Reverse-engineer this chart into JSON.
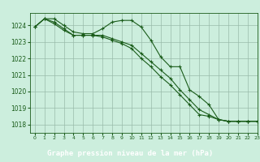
{
  "xlabel": "Graphe pression niveau de la mer (hPa)",
  "bg_color": "#cceedd",
  "plot_bg_color": "#cce8dd",
  "label_bg_color": "#2d6e2d",
  "label_text_color": "#ffffff",
  "grid_color": "#99bbaa",
  "line_color": "#1a5c1a",
  "ylim": [
    1017.5,
    1024.75
  ],
  "xlim": [
    -0.5,
    23
  ],
  "yticks": [
    1018,
    1019,
    1020,
    1021,
    1022,
    1023,
    1024
  ],
  "xticks": [
    0,
    1,
    2,
    3,
    4,
    5,
    6,
    7,
    8,
    9,
    10,
    11,
    12,
    13,
    14,
    15,
    16,
    17,
    18,
    19,
    20,
    21,
    22,
    23
  ],
  "series": [
    [
      1023.9,
      1024.4,
      1024.4,
      1024.0,
      1023.6,
      1023.5,
      1023.5,
      1023.8,
      1024.2,
      1024.3,
      1024.3,
      1023.9,
      1023.1,
      1022.1,
      1021.5,
      1021.5,
      1020.1,
      1019.7,
      1019.2,
      1018.3,
      1018.2,
      1018.2,
      1018.2,
      1018.2
    ],
    [
      1023.9,
      1024.4,
      1024.2,
      1023.8,
      1023.4,
      1023.4,
      1023.4,
      1023.4,
      1023.2,
      1023.0,
      1022.8,
      1022.3,
      1021.8,
      1021.3,
      1020.8,
      1020.1,
      1019.5,
      1018.9,
      1018.6,
      1018.3,
      1018.2,
      1018.2,
      1018.2,
      1018.2
    ],
    [
      1023.9,
      1024.4,
      1024.1,
      1023.7,
      1023.4,
      1023.4,
      1023.4,
      1023.3,
      1023.1,
      1022.9,
      1022.6,
      1022.0,
      1021.5,
      1020.9,
      1020.4,
      1019.8,
      1019.2,
      1018.6,
      1018.5,
      1018.3,
      1018.2,
      1018.2,
      1018.2,
      1018.2
    ]
  ]
}
